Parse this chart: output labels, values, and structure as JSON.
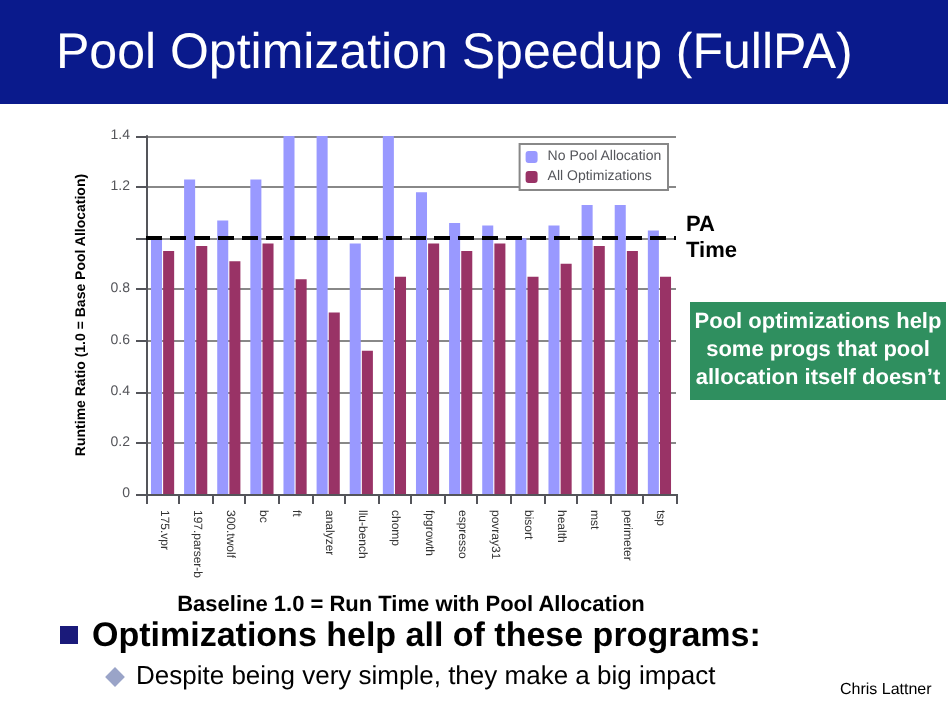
{
  "chart_data": {
    "type": "bar",
    "title": "Pool Optimization Speedup (FullPA)",
    "xlabel": "Baseline 1.0 = Run Time with Pool Allocation",
    "ylabel": "Runtime Ratio (1.0 = Base Pool Allocation)",
    "categories": [
      "175.vpr",
      "197.parser-b",
      "300.twolf",
      "bc",
      "ft",
      "analyzer",
      "llu-bench",
      "chomp",
      "fpgrowth",
      "espresso",
      "povray31",
      "bisort",
      "health",
      "mst",
      "perimeter",
      "tsp"
    ],
    "series": [
      {
        "name": "No Pool Allocation",
        "color": "#9999ff",
        "values": [
          1.0,
          1.23,
          1.07,
          1.23,
          1.4,
          1.4,
          0.98,
          1.4,
          1.18,
          1.06,
          1.05,
          1.0,
          1.05,
          1.13,
          1.13,
          1.03
        ]
      },
      {
        "name": "All Optimizations",
        "color": "#993366",
        "values": [
          0.95,
          0.97,
          0.91,
          0.98,
          0.84,
          0.71,
          0.56,
          0.85,
          0.98,
          0.95,
          0.98,
          0.85,
          0.9,
          0.97,
          0.95,
          0.85
        ]
      }
    ],
    "ylim": [
      0,
      1.4
    ],
    "yticks": [
      0,
      0.2,
      0.4,
      0.6,
      0.8,
      {
        "value": 1,
        "label": null
      },
      1.2,
      1.4
    ],
    "ref_lines": [
      {
        "axis": "y",
        "value": 1,
        "label": "PA Time",
        "color": "#000000",
        "line_style": "dashed"
      }
    ],
    "grid": "y",
    "legend": "top right",
    "annotations": [
      "Pool optimizations help some progs that pool allocation itself doesn’t",
      "Optimizations help all of these programs:",
      "Despite being very simple, they make a big impact",
      "Chris Lattner"
    ]
  }
}
